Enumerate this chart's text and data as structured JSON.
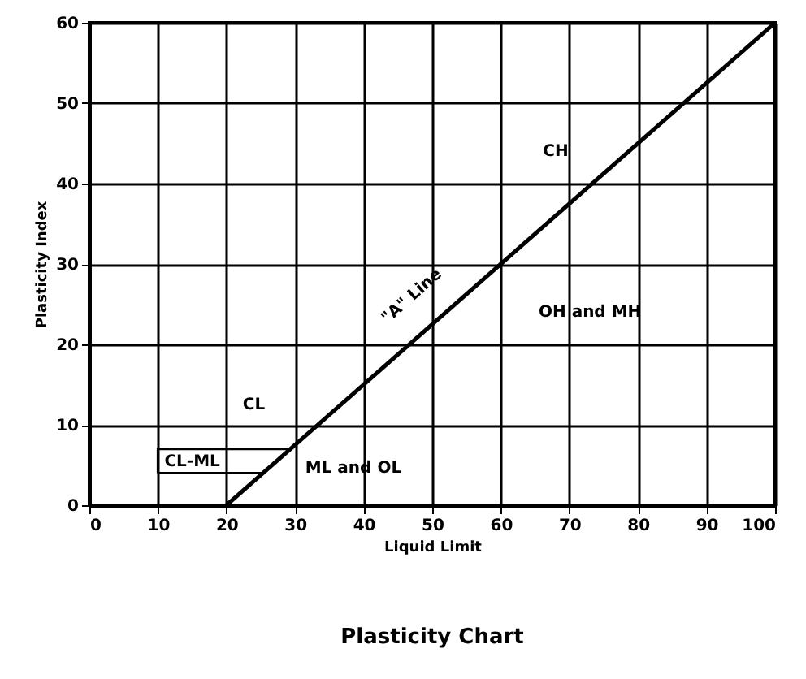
{
  "chart_data": {
    "type": "line",
    "title": "Plasticity Chart",
    "xlabel": "Liquid Limit",
    "ylabel": "Plasticity Index",
    "xlim": [
      0,
      100
    ],
    "ylim": [
      0,
      60
    ],
    "xticks": [
      0,
      10,
      20,
      30,
      40,
      50,
      60,
      70,
      80,
      90,
      100
    ],
    "yticks": [
      0,
      10,
      20,
      30,
      40,
      50,
      60
    ],
    "grid": true,
    "series": [
      {
        "color": "#000000",
        "x": [
          20,
          100
        ],
        "values": [
          0,
          60
        ]
      }
    ],
    "annotations": [
      "CH",
      "OH and MH",
      "CL",
      "ML and OL",
      "CL-ML",
      "\"A\" Line"
    ]
  }
}
